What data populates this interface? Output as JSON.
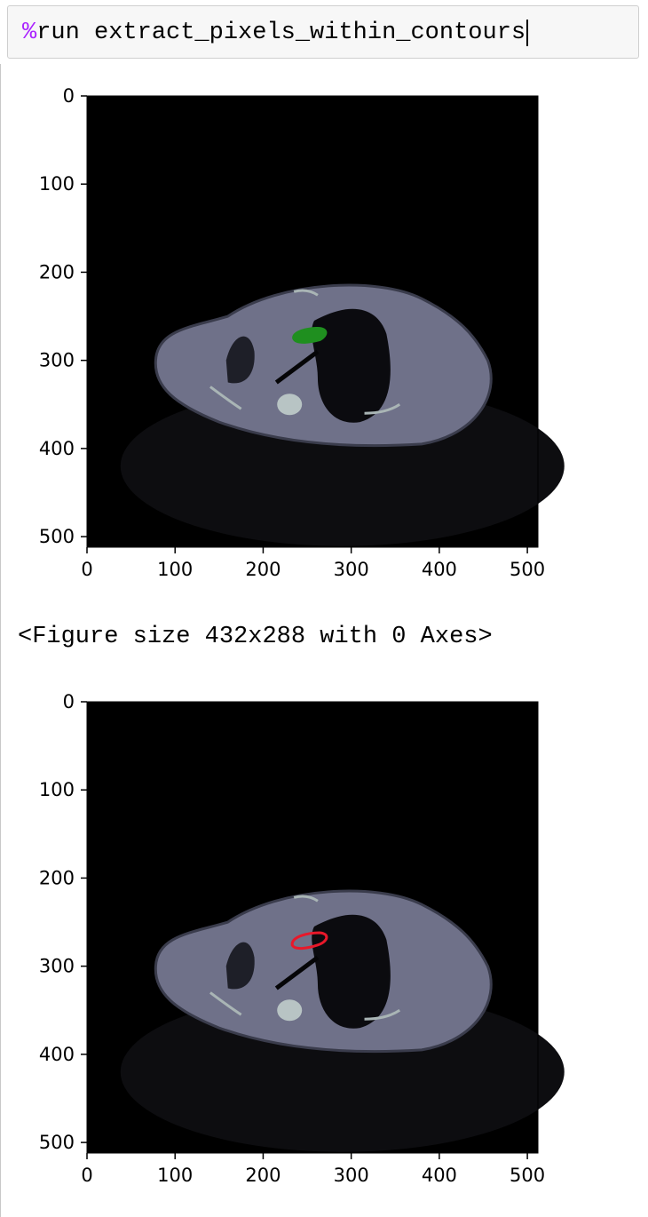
{
  "input_cell": {
    "magic": "%",
    "code": "run extract_pixels_within_contours"
  },
  "output": {
    "figure_text": "<Figure size 432x288 with 0 Axes>"
  },
  "colors": {
    "overlay_fill": "#1f8f1f",
    "contour_outline": "#e8182a",
    "ct_tissue": "#6f7189",
    "image_background": "#000000"
  },
  "chart_data": [
    {
      "type": "image",
      "overlay": "filled-region",
      "overlay_color": "#1f8f1f",
      "xlim": [
        0,
        512
      ],
      "ylim": [
        512,
        0
      ],
      "x_ticks": [
        "0",
        "100",
        "200",
        "300",
        "400",
        "500"
      ],
      "y_ticks": [
        "0",
        "100",
        "200",
        "300",
        "400",
        "500"
      ]
    },
    {
      "type": "image",
      "overlay": "contour-outline",
      "overlay_color": "#e8182a",
      "xlim": [
        0,
        512
      ],
      "ylim": [
        512,
        0
      ],
      "x_ticks": [
        "0",
        "100",
        "200",
        "300",
        "400",
        "500"
      ],
      "y_ticks": [
        "0",
        "100",
        "200",
        "300",
        "400",
        "500"
      ]
    }
  ]
}
